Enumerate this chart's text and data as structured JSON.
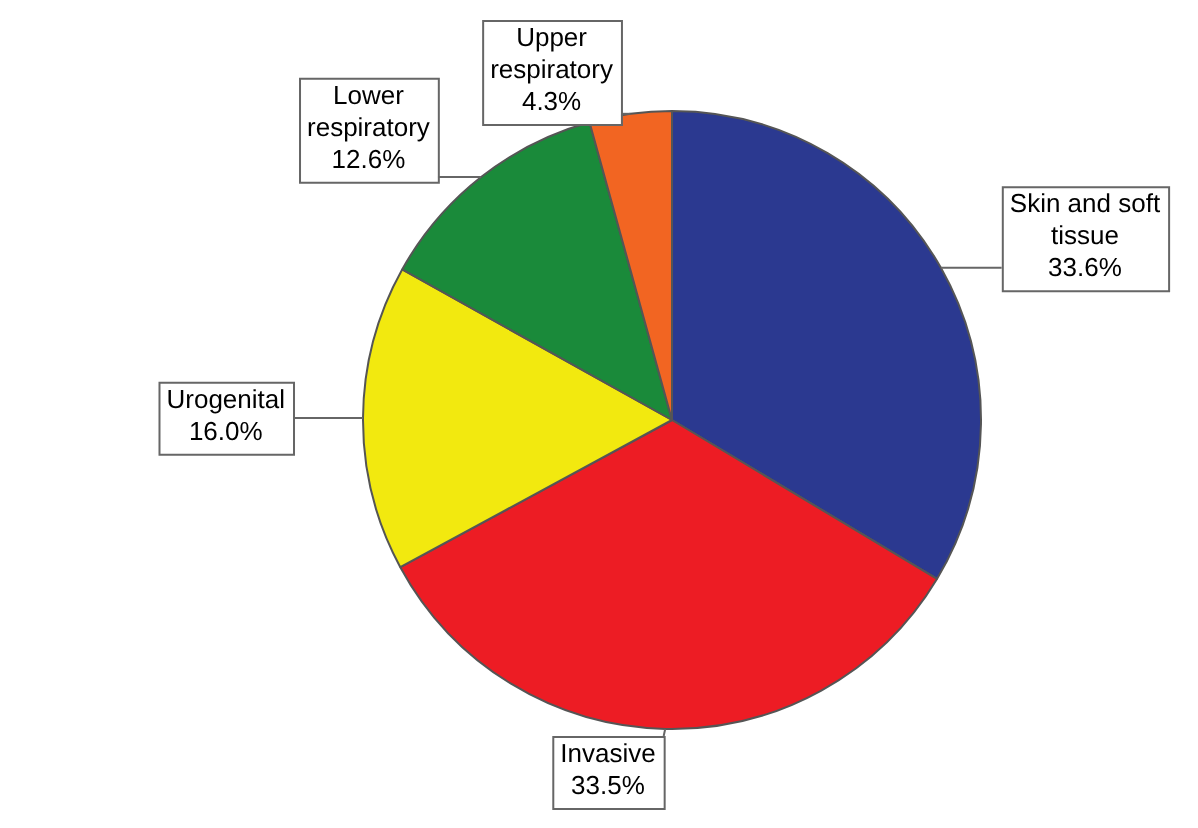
{
  "chart_data": {
    "type": "pie",
    "categories": [
      "Skin and soft tissue",
      "Invasive",
      "Urogenital",
      "Lower respiratory",
      "Upper respiratory"
    ],
    "values": [
      33.6,
      33.5,
      16.0,
      12.6,
      4.3
    ],
    "colors": [
      "#2b3990",
      "#ed1c24",
      "#f2e90f",
      "#1a8a3a",
      "#f26522"
    ],
    "value_labels": [
      "33.6%",
      "33.5%",
      "16.0%",
      "12.6%",
      "4.3%"
    ]
  }
}
